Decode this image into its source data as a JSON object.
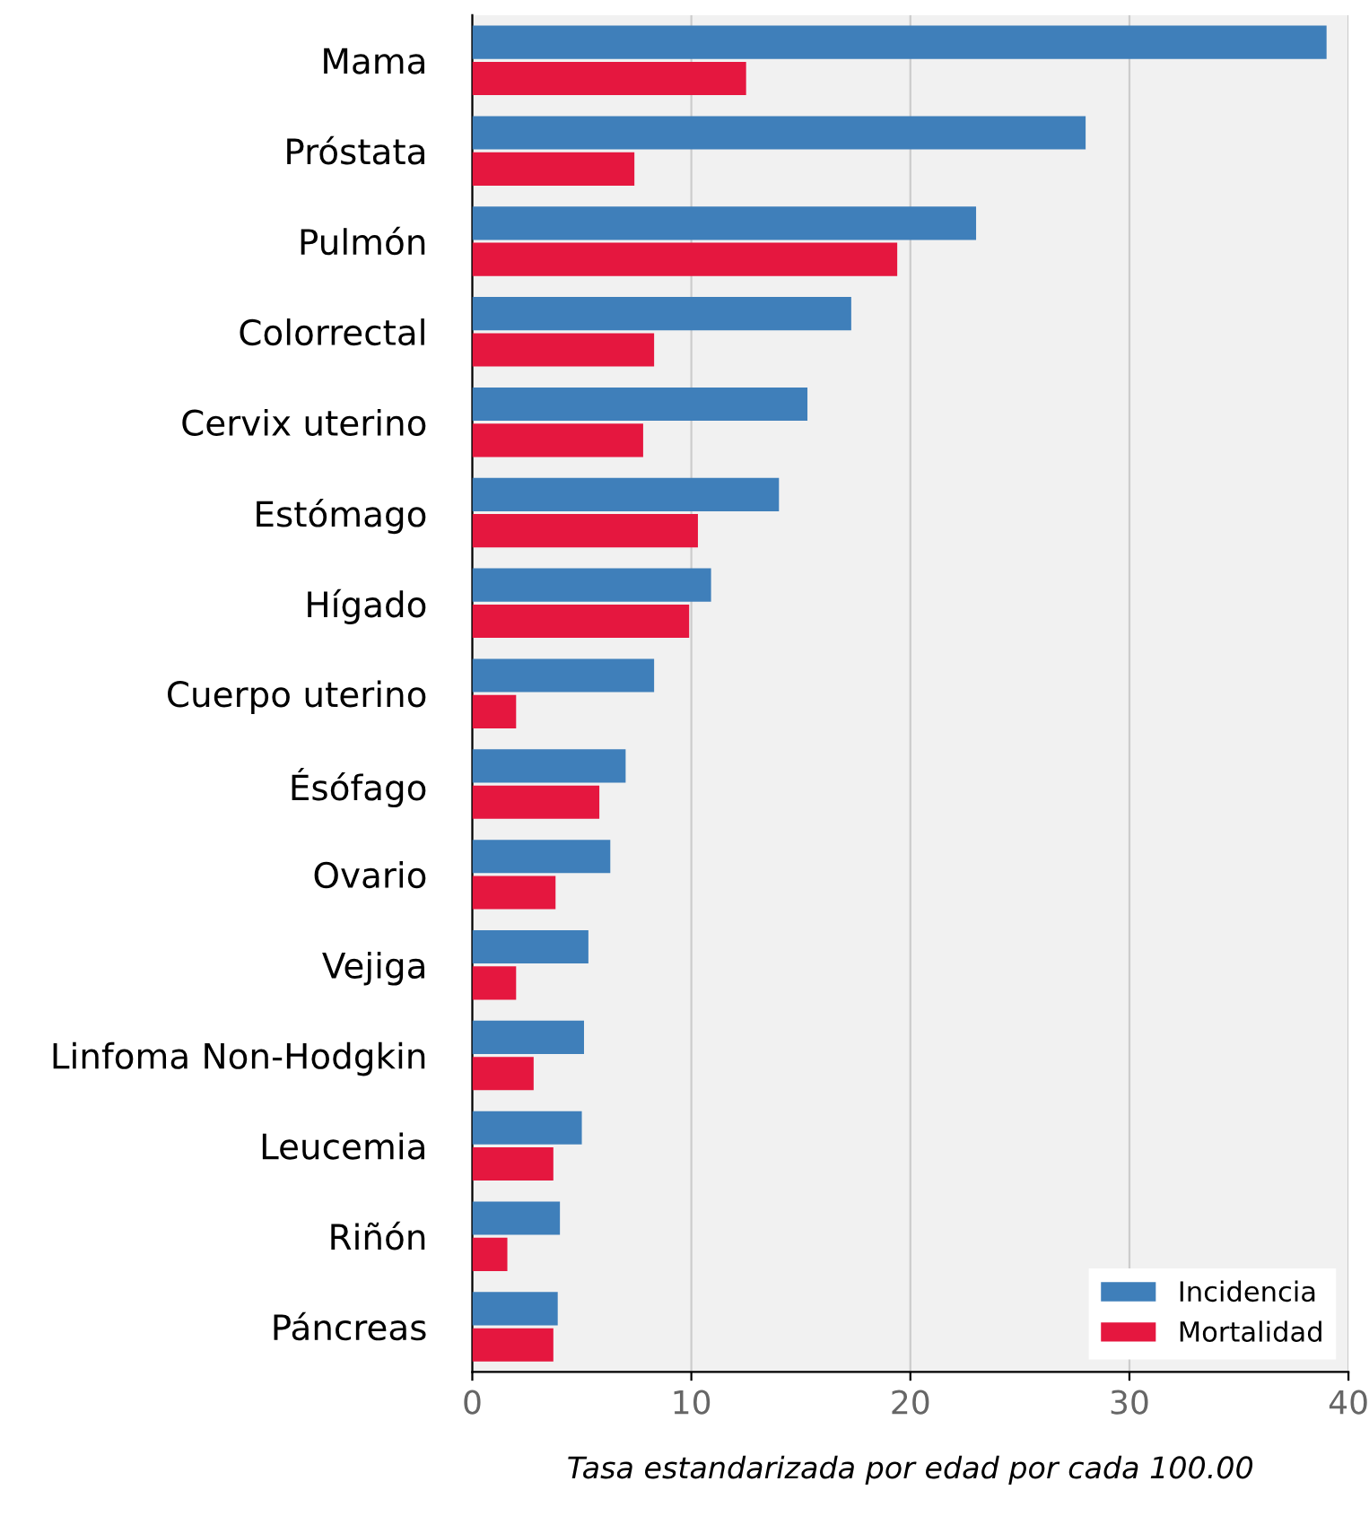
{
  "chart_data": {
    "type": "bar",
    "orientation": "horizontal",
    "xlabel": "Tasa estandarizada por edad por cada 100.00",
    "categories": [
      "Mama",
      "Próstata",
      "Pulmón",
      "Colorrectal",
      "Cervix uterino",
      "Estómago",
      "Hígado",
      "Cuerpo uterino",
      "Ésófago",
      "Ovario",
      "Vejiga",
      "Linfoma Non-Hodgkin",
      "Leucemia",
      "Riñón",
      "Páncreas"
    ],
    "series": [
      {
        "name": "Incidencia",
        "color": "#3f7fba",
        "values": [
          39.0,
          28.0,
          23.0,
          17.3,
          15.3,
          14.0,
          10.9,
          8.3,
          7.0,
          6.3,
          5.3,
          5.1,
          5.0,
          4.0,
          3.9
        ]
      },
      {
        "name": "Mortalidad",
        "color": "#e5173f",
        "values": [
          12.5,
          7.4,
          19.4,
          8.3,
          7.8,
          10.3,
          9.9,
          2.0,
          5.8,
          3.8,
          2.0,
          2.8,
          3.7,
          1.6,
          3.7
        ]
      }
    ],
    "xlim": [
      0,
      40
    ],
    "xticks": [
      0,
      10,
      20,
      30,
      40
    ],
    "grid": "x",
    "legend": "bottom right"
  }
}
